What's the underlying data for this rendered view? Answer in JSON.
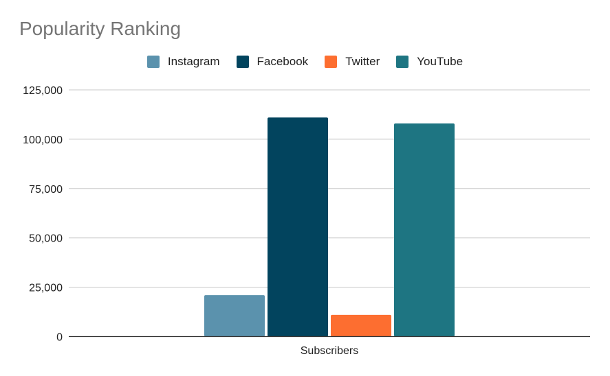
{
  "chart_data": {
    "type": "bar",
    "title": "Popularity Ranking",
    "categories": [
      "Subscribers"
    ],
    "series": [
      {
        "name": "Instagram",
        "values": [
          21000
        ],
        "color": "#5b92ad"
      },
      {
        "name": "Facebook",
        "values": [
          111000
        ],
        "color": "#02445e"
      },
      {
        "name": "Twitter",
        "values": [
          11000
        ],
        "color": "#fd6e30"
      },
      {
        "name": "YouTube",
        "values": [
          108000
        ],
        "color": "#1e7582"
      }
    ],
    "xlabel": "",
    "ylabel": "",
    "ylim": [
      0,
      125000
    ],
    "yticks": [
      "0",
      "25,000",
      "50,000",
      "75,000",
      "100,000",
      "125,000"
    ],
    "grid": true,
    "legend_position": "top"
  }
}
